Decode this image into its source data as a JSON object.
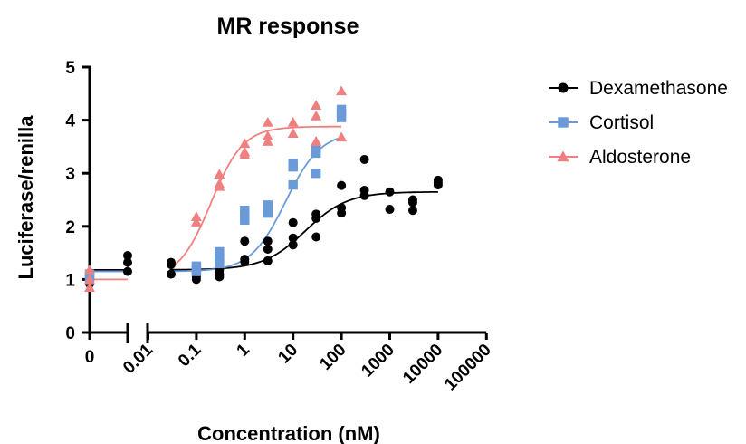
{
  "chart_data": {
    "type": "scatter",
    "title": "MR response",
    "xlabel": "Concentration (nM)",
    "ylabel": "Luciferase/renilla",
    "x_scale": "log",
    "x_axis_segments": [
      {
        "ticks": [
          "0"
        ],
        "range": [
          0,
          0.004
        ]
      },
      {
        "ticks": [
          "0.01",
          "0.1",
          "1",
          "10",
          "100",
          "1000",
          "10000",
          "100000"
        ],
        "range": [
          0.01,
          100000
        ]
      }
    ],
    "x_tick_values": [
      0.01,
      0.1,
      1,
      10,
      100,
      1000,
      10000,
      100000
    ],
    "x_tick_labels": [
      "0.01",
      "0.1",
      "1",
      "10",
      "100",
      "1000",
      "10000",
      "100000"
    ],
    "x_zero_label": "0",
    "ylim": [
      0,
      5
    ],
    "y_ticks": [
      "0",
      "1",
      "2",
      "3",
      "4",
      "5"
    ],
    "grid": false,
    "legend_position": "right",
    "series": [
      {
        "name": "Dexamethasone",
        "color": "#000000",
        "marker": "circle",
        "fit": {
          "bottom": 1.18,
          "top": 2.65,
          "ec50": 18,
          "hill": 1.0,
          "xmax": 10000
        },
        "points": [
          {
            "x": 0,
            "y": 1.05
          },
          {
            "x": 0,
            "y": 0.98
          },
          {
            "x": 0,
            "y": 0.92
          },
          {
            "x": 0.004,
            "y": 1.45
          },
          {
            "x": 0.004,
            "y": 1.32
          },
          {
            "x": 0.004,
            "y": 1.15
          },
          {
            "x": 0.03,
            "y": 1.32
          },
          {
            "x": 0.03,
            "y": 1.28
          },
          {
            "x": 0.03,
            "y": 1.1
          },
          {
            "x": 0.1,
            "y": 1.12
          },
          {
            "x": 0.1,
            "y": 1.05
          },
          {
            "x": 0.1,
            "y": 1.0
          },
          {
            "x": 0.3,
            "y": 1.18
          },
          {
            "x": 0.3,
            "y": 1.1
          },
          {
            "x": 0.3,
            "y": 1.05
          },
          {
            "x": 1,
            "y": 1.72
          },
          {
            "x": 1,
            "y": 1.38
          },
          {
            "x": 1,
            "y": 1.33
          },
          {
            "x": 3,
            "y": 1.72
          },
          {
            "x": 3,
            "y": 1.57
          },
          {
            "x": 3,
            "y": 1.35
          },
          {
            "x": 10,
            "y": 2.07
          },
          {
            "x": 10,
            "y": 1.78
          },
          {
            "x": 10,
            "y": 1.65
          },
          {
            "x": 30,
            "y": 2.23
          },
          {
            "x": 30,
            "y": 2.15
          },
          {
            "x": 30,
            "y": 1.8
          },
          {
            "x": 100,
            "y": 2.77
          },
          {
            "x": 100,
            "y": 2.35
          },
          {
            "x": 100,
            "y": 2.25
          },
          {
            "x": 300,
            "y": 3.26
          },
          {
            "x": 300,
            "y": 2.68
          },
          {
            "x": 300,
            "y": 2.58
          },
          {
            "x": 1000,
            "y": 2.65
          },
          {
            "x": 1000,
            "y": 2.32
          },
          {
            "x": 3000,
            "y": 2.5
          },
          {
            "x": 3000,
            "y": 2.45
          },
          {
            "x": 3000,
            "y": 2.3
          },
          {
            "x": 10000,
            "y": 2.87
          },
          {
            "x": 10000,
            "y": 2.82
          },
          {
            "x": 10000,
            "y": 2.78
          }
        ]
      },
      {
        "name": "Cortisol",
        "color": "#6a9bd8",
        "marker": "square",
        "fit": {
          "bottom": 1.15,
          "top": 3.78,
          "ec50": 7,
          "hill": 1.2,
          "xmax": 100
        },
        "points": [
          {
            "x": 0,
            "y": 1.1
          },
          {
            "x": 0,
            "y": 1.05
          },
          {
            "x": 0,
            "y": 1.0
          },
          {
            "x": 0.1,
            "y": 1.25
          },
          {
            "x": 0.1,
            "y": 1.2
          },
          {
            "x": 0.1,
            "y": 1.15
          },
          {
            "x": 0.3,
            "y": 1.52
          },
          {
            "x": 0.3,
            "y": 1.4
          },
          {
            "x": 0.3,
            "y": 1.3
          },
          {
            "x": 1,
            "y": 2.3
          },
          {
            "x": 1,
            "y": 2.2
          },
          {
            "x": 1,
            "y": 2.12
          },
          {
            "x": 3,
            "y": 2.4
          },
          {
            "x": 3,
            "y": 2.33
          },
          {
            "x": 3,
            "y": 2.25
          },
          {
            "x": 10,
            "y": 3.18
          },
          {
            "x": 10,
            "y": 3.12
          },
          {
            "x": 10,
            "y": 2.78
          },
          {
            "x": 30,
            "y": 3.47
          },
          {
            "x": 30,
            "y": 3.38
          },
          {
            "x": 30,
            "y": 3.0
          },
          {
            "x": 100,
            "y": 4.2
          },
          {
            "x": 100,
            "y": 4.12
          },
          {
            "x": 100,
            "y": 4.05
          }
        ]
      },
      {
        "name": "Aldosterone",
        "color": "#f08080",
        "marker": "triangle",
        "fit": {
          "bottom": 1.0,
          "top": 3.88,
          "ec50": 0.2,
          "hill": 1.3,
          "xmax": 100
        },
        "points": [
          {
            "x": 0,
            "y": 1.18
          },
          {
            "x": 0,
            "y": 1.0
          },
          {
            "x": 0,
            "y": 0.85
          },
          {
            "x": 0.1,
            "y": 2.18
          },
          {
            "x": 0.1,
            "y": 2.08
          },
          {
            "x": 0.3,
            "y": 2.98
          },
          {
            "x": 0.3,
            "y": 2.8
          },
          {
            "x": 0.3,
            "y": 2.75
          },
          {
            "x": 1,
            "y": 3.56
          },
          {
            "x": 1,
            "y": 3.4
          },
          {
            "x": 1,
            "y": 3.35
          },
          {
            "x": 3,
            "y": 3.96
          },
          {
            "x": 3,
            "y": 3.7
          },
          {
            "x": 3,
            "y": 3.6
          },
          {
            "x": 10,
            "y": 3.96
          },
          {
            "x": 10,
            "y": 3.75
          },
          {
            "x": 30,
            "y": 4.28
          },
          {
            "x": 30,
            "y": 4.08
          },
          {
            "x": 30,
            "y": 3.6
          },
          {
            "x": 100,
            "y": 4.55
          },
          {
            "x": 100,
            "y": 3.68
          }
        ]
      }
    ]
  }
}
